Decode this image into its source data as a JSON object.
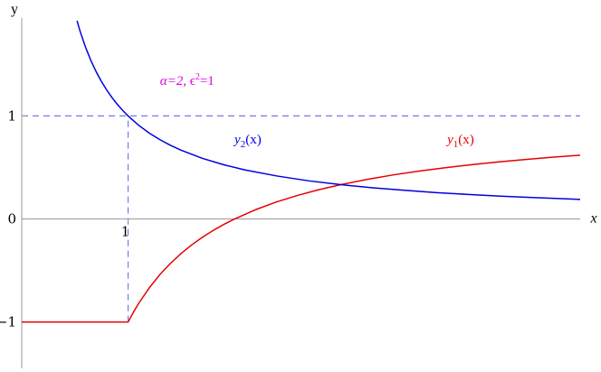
{
  "chart_data": {
    "type": "line",
    "xlabel": "x",
    "ylabel": "y",
    "xlim": [
      0,
      5.25
    ],
    "ylim": [
      -1.45,
      1.95
    ],
    "x_ticks": [
      {
        "value": 1,
        "label": "1"
      }
    ],
    "y_ticks": [
      {
        "value": -1,
        "label": "−1"
      },
      {
        "value": 0,
        "label": "0"
      },
      {
        "value": 1,
        "label": "1"
      }
    ],
    "grid": false,
    "reference_lines": [
      {
        "orientation": "horizontal",
        "value": 1,
        "style": "dashed",
        "color": "#7777ee"
      },
      {
        "orientation": "vertical",
        "value": 1,
        "from": -1,
        "to": 1,
        "style": "dashed",
        "color": "#7777ee"
      }
    ],
    "series": [
      {
        "name": "y1(x)",
        "label_main": "y",
        "label_sub": "1",
        "label_arg": "(x)",
        "label_x": 4.0,
        "label_y": 0.73,
        "color": "#e60000",
        "points": [
          [
            0,
            -1
          ],
          [
            1,
            -1
          ],
          [
            1.05,
            -0.905
          ],
          [
            1.1,
            -0.818
          ],
          [
            1.2,
            -0.667
          ],
          [
            1.3,
            -0.538
          ],
          [
            1.4,
            -0.429
          ],
          [
            1.5,
            -0.333
          ],
          [
            1.6,
            -0.25
          ],
          [
            1.7,
            -0.176
          ],
          [
            1.8,
            -0.111
          ],
          [
            1.9,
            -0.053
          ],
          [
            2.0,
            0.0
          ],
          [
            2.2,
            0.091
          ],
          [
            2.4,
            0.167
          ],
          [
            2.6,
            0.231
          ],
          [
            2.8,
            0.286
          ],
          [
            3.0,
            0.333
          ],
          [
            3.25,
            0.385
          ],
          [
            3.5,
            0.429
          ],
          [
            3.75,
            0.467
          ],
          [
            4.0,
            0.5
          ],
          [
            4.25,
            0.529
          ],
          [
            4.5,
            0.556
          ],
          [
            4.75,
            0.579
          ],
          [
            5.0,
            0.6
          ],
          [
            5.25,
            0.619
          ]
        ]
      },
      {
        "name": "y2(x)",
        "label_main": "y",
        "label_sub": "2",
        "label_arg": "(x)",
        "label_x": 2.0,
        "label_y": 0.73,
        "color": "#0000e0",
        "points": [
          [
            0.52,
            1.923
          ],
          [
            0.55,
            1.818
          ],
          [
            0.6,
            1.667
          ],
          [
            0.65,
            1.538
          ],
          [
            0.7,
            1.429
          ],
          [
            0.75,
            1.333
          ],
          [
            0.8,
            1.25
          ],
          [
            0.85,
            1.176
          ],
          [
            0.9,
            1.111
          ],
          [
            0.95,
            1.053
          ],
          [
            1.0,
            1.0
          ],
          [
            1.1,
            0.909
          ],
          [
            1.2,
            0.833
          ],
          [
            1.3,
            0.769
          ],
          [
            1.4,
            0.714
          ],
          [
            1.5,
            0.667
          ],
          [
            1.7,
            0.588
          ],
          [
            1.9,
            0.526
          ],
          [
            2.1,
            0.476
          ],
          [
            2.4,
            0.417
          ],
          [
            2.7,
            0.37
          ],
          [
            3.0,
            0.333
          ],
          [
            3.3,
            0.303
          ],
          [
            3.6,
            0.278
          ],
          [
            3.9,
            0.256
          ],
          [
            4.2,
            0.238
          ],
          [
            4.5,
            0.222
          ],
          [
            4.8,
            0.208
          ],
          [
            5.25,
            0.19
          ]
        ]
      }
    ],
    "annotations": [
      {
        "alpha_text": "α=2, ",
        "eps_text": "ϵ",
        "sup": "2",
        "rest": "=1",
        "x": 1.3,
        "y": 1.3,
        "color": "#dd00dd"
      }
    ]
  }
}
